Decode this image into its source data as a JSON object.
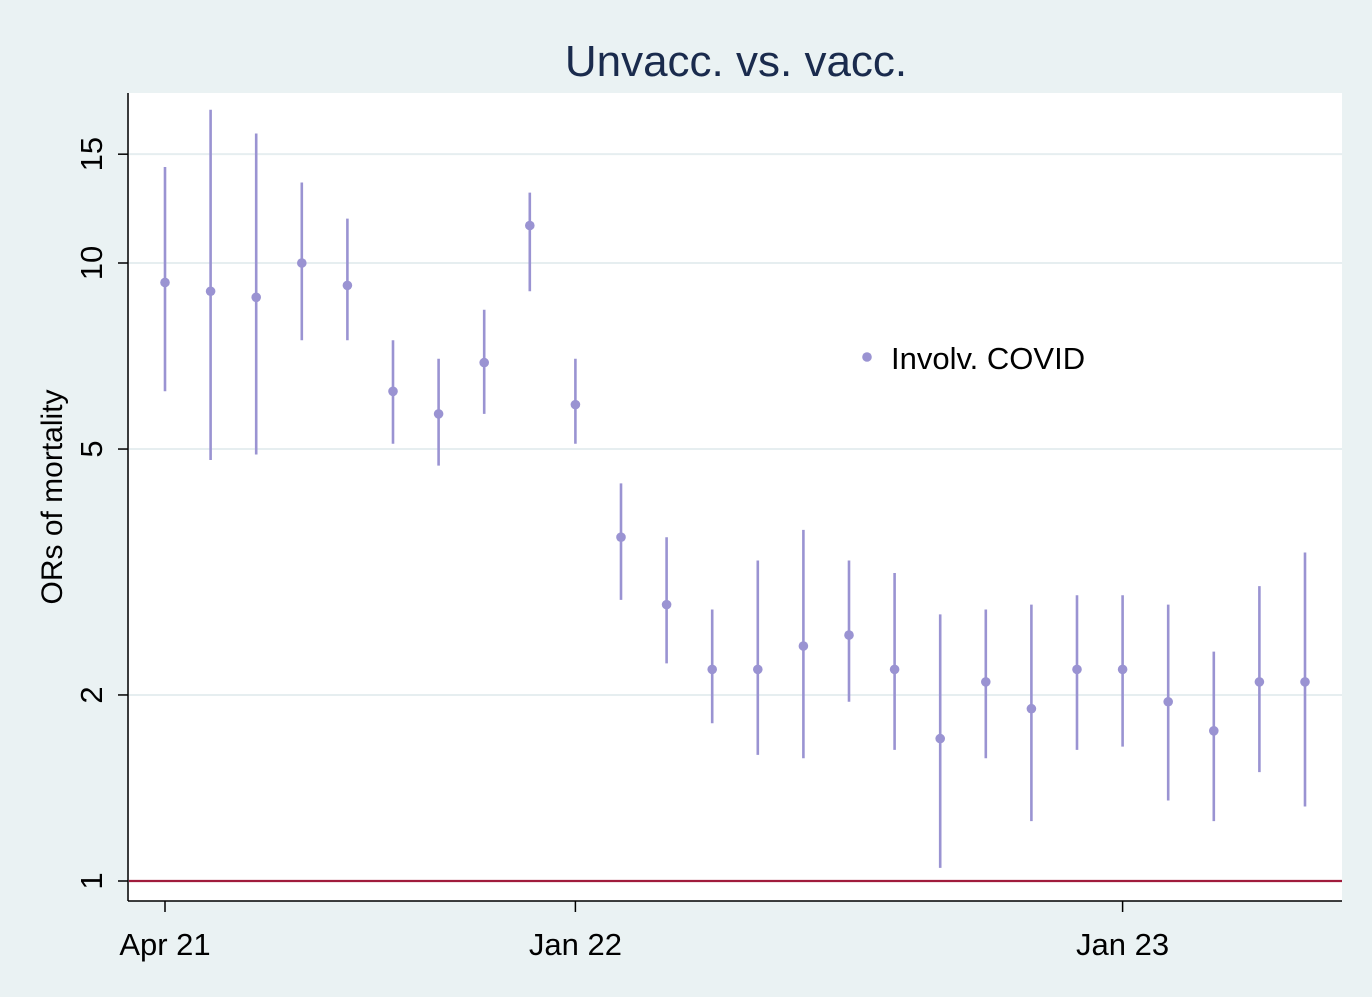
{
  "chart_data": {
    "type": "scatter",
    "subtype": "point-estimates-with-confidence-intervals",
    "title": "Unvacc. vs. vacc.",
    "xlabel": "",
    "ylabel": "ORs of mortality",
    "y_scale": "log",
    "ylim": [
      1,
      18
    ],
    "y_ticks": [
      1,
      2,
      5,
      10,
      15
    ],
    "y_tick_labels": [
      "1",
      "2",
      "5",
      "10",
      "15"
    ],
    "x_ticks": [
      "2021-04",
      "2022-01",
      "2023-01"
    ],
    "x_tick_labels": [
      "Apr 21",
      "Jan 22",
      "Jan 23"
    ],
    "grid": true,
    "legend": {
      "position": "upper-right-inside",
      "entries": [
        "Involv. COVID"
      ]
    },
    "reference_line": {
      "y": 1,
      "color": "#a01c3c"
    },
    "series": [
      {
        "name": "Involv. COVID",
        "color": "#9a93d2",
        "x": [
          "2021-04",
          "2021-05",
          "2021-06",
          "2021-07",
          "2021-08",
          "2021-09",
          "2021-10",
          "2021-11",
          "2021-12",
          "2022-01",
          "2022-02",
          "2022-03",
          "2022-04",
          "2022-05",
          "2022-06",
          "2022-07",
          "2022-08",
          "2022-09",
          "2022-10",
          "2022-11",
          "2022-12",
          "2023-01",
          "2023-02",
          "2023-03",
          "2023-04",
          "2023-05"
        ],
        "y": [
          9.3,
          9.0,
          8.8,
          10.0,
          9.2,
          6.2,
          5.7,
          6.9,
          11.5,
          5.9,
          3.6,
          2.8,
          2.2,
          2.2,
          2.4,
          2.5,
          2.2,
          1.7,
          2.1,
          1.9,
          2.2,
          2.2,
          1.95,
          1.75,
          2.1,
          2.1
        ],
        "lower": [
          6.2,
          4.8,
          4.9,
          7.5,
          7.5,
          5.1,
          4.7,
          5.7,
          9.0,
          5.1,
          2.85,
          2.25,
          1.8,
          1.6,
          1.58,
          1.95,
          1.63,
          1.05,
          1.58,
          1.25,
          1.63,
          1.65,
          1.35,
          1.25,
          1.5,
          1.32
        ],
        "upper": [
          14.3,
          17.7,
          16.2,
          13.5,
          11.8,
          7.5,
          7.0,
          8.4,
          13.0,
          7.0,
          4.4,
          3.6,
          2.75,
          3.3,
          3.7,
          3.3,
          3.15,
          2.7,
          2.75,
          2.8,
          2.9,
          2.9,
          2.8,
          2.35,
          3.0,
          3.4
        ]
      }
    ]
  }
}
